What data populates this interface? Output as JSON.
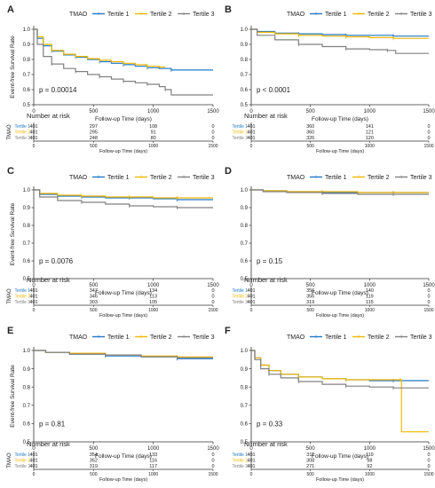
{
  "legend": {
    "title": "TMAO",
    "entries": [
      "Tertile 1",
      "Tertile 2",
      "Tertile 3"
    ]
  },
  "colors": {
    "t1": "#1f78c8",
    "t2": "#f2b705",
    "t3": "#808080"
  },
  "risk_rows": [
    "Tertile 1",
    "Tertile 2",
    "Tertile 3"
  ],
  "chart_data": [
    {
      "panel": "A",
      "type": "line",
      "ylabel": "Event-free Survival Rate",
      "xlabel": "Follow-up Time (days)",
      "xlim": [
        0,
        1500
      ],
      "ylim": [
        0.5,
        1.0
      ],
      "yticks": [
        "0.5",
        "0.6",
        "0.7",
        "0.8",
        "0.9",
        "1.0"
      ],
      "xticks": [
        "0",
        "500",
        "1000",
        "1500"
      ],
      "pvalue": "p = 0.00014",
      "risk_title": "Number at risk",
      "risk_axis_label": "TMAO",
      "risk_table": [
        [
          "401",
          "297",
          "108",
          "0"
        ],
        [
          "401",
          "295",
          "91",
          "0"
        ],
        [
          "401",
          "248",
          "80",
          "0"
        ]
      ],
      "series": [
        {
          "x": [
            0,
            30,
            80,
            150,
            250,
            350,
            450,
            550,
            650,
            750,
            850,
            950,
            1050,
            1150,
            1500
          ],
          "y": [
            1.0,
            0.94,
            0.89,
            0.855,
            0.83,
            0.815,
            0.8,
            0.785,
            0.775,
            0.765,
            0.755,
            0.745,
            0.74,
            0.73,
            0.73
          ]
        },
        {
          "x": [
            0,
            30,
            80,
            150,
            250,
            350,
            450,
            550,
            650,
            750,
            850,
            950,
            1050,
            1100
          ],
          "y": [
            1.0,
            0.95,
            0.9,
            0.86,
            0.835,
            0.82,
            0.805,
            0.795,
            0.785,
            0.775,
            0.765,
            0.755,
            0.75,
            0.75
          ]
        },
        {
          "x": [
            0,
            30,
            80,
            150,
            250,
            350,
            450,
            550,
            650,
            750,
            850,
            950,
            1050,
            1100,
            1150,
            1500
          ],
          "y": [
            1.0,
            0.9,
            0.82,
            0.77,
            0.74,
            0.72,
            0.7,
            0.685,
            0.67,
            0.655,
            0.645,
            0.635,
            0.62,
            0.6,
            0.565,
            0.565
          ]
        }
      ]
    },
    {
      "panel": "B",
      "type": "line",
      "ylabel": "",
      "xlabel": "Follow-up Time (days)",
      "xlim": [
        0,
        1500
      ],
      "ylim": [
        0.5,
        1.0
      ],
      "yticks": [
        "0.5",
        "0.6",
        "0.7",
        "0.8",
        "0.9",
        "1.0"
      ],
      "xticks": [
        "0",
        "500",
        "1000",
        "1500"
      ],
      "pvalue": "p < 0.0001",
      "risk_title": "Number at risk",
      "risk_axis_label": "",
      "risk_table": [
        [
          "401",
          "360",
          "141",
          "0"
        ],
        [
          "401",
          "360",
          "121",
          "0"
        ],
        [
          "401",
          "326",
          "120",
          "0"
        ]
      ],
      "series": [
        {
          "x": [
            0,
            50,
            200,
            400,
            600,
            800,
            1000,
            1200,
            1500
          ],
          "y": [
            1.0,
            0.985,
            0.975,
            0.97,
            0.965,
            0.96,
            0.96,
            0.955,
            0.955
          ]
        },
        {
          "x": [
            0,
            50,
            200,
            400,
            600,
            800,
            1000,
            1200,
            1500
          ],
          "y": [
            1.0,
            0.98,
            0.97,
            0.96,
            0.955,
            0.95,
            0.945,
            0.94,
            0.94
          ]
        },
        {
          "x": [
            0,
            50,
            200,
            400,
            600,
            800,
            1000,
            1150,
            1220,
            1500
          ],
          "y": [
            1.0,
            0.96,
            0.93,
            0.9,
            0.885,
            0.87,
            0.865,
            0.86,
            0.84,
            0.84
          ]
        }
      ]
    },
    {
      "panel": "C",
      "type": "line",
      "ylabel": "Event-free Survival Rate",
      "xlabel": "Follow-up Time (days)",
      "xlim": [
        0,
        1500
      ],
      "ylim": [
        0.5,
        1.0
      ],
      "yticks": [
        "0.5",
        "0.6",
        "0.7",
        "0.8",
        "0.9",
        "1.0"
      ],
      "xticks": [
        "0",
        "500",
        "1000",
        "1500"
      ],
      "pvalue": "p = 0.0076",
      "risk_title": "Number at risk",
      "risk_axis_label": "TMAO",
      "risk_table": [
        [
          "401",
          "347",
          "134",
          "0"
        ],
        [
          "401",
          "346",
          "113",
          "0"
        ],
        [
          "401",
          "303",
          "105",
          "0"
        ]
      ],
      "series": [
        {
          "x": [
            0,
            50,
            200,
            400,
            600,
            800,
            1000,
            1200,
            1500
          ],
          "y": [
            1.0,
            0.975,
            0.965,
            0.96,
            0.955,
            0.955,
            0.95,
            0.945,
            0.945
          ]
        },
        {
          "x": [
            0,
            50,
            200,
            400,
            600,
            800,
            1000,
            1200,
            1500
          ],
          "y": [
            1.0,
            0.98,
            0.97,
            0.965,
            0.96,
            0.96,
            0.955,
            0.955,
            0.955
          ]
        },
        {
          "x": [
            0,
            50,
            200,
            400,
            600,
            800,
            1000,
            1200,
            1500
          ],
          "y": [
            1.0,
            0.96,
            0.94,
            0.93,
            0.92,
            0.91,
            0.905,
            0.9,
            0.9
          ]
        }
      ]
    },
    {
      "panel": "D",
      "type": "line",
      "ylabel": "",
      "xlabel": "Follow-up Time (days)",
      "xlim": [
        0,
        1500
      ],
      "ylim": [
        0.5,
        1.0
      ],
      "yticks": [
        "0.5",
        "0.6",
        "0.7",
        "0.8",
        "0.9",
        "1.0"
      ],
      "xticks": [
        "0",
        "500",
        "1000",
        "1500"
      ],
      "pvalue": "p = 0.15",
      "risk_title": "Number at risk",
      "risk_axis_label": "",
      "risk_table": [
        [
          "401",
          "356",
          "140",
          "0"
        ],
        [
          "401",
          "356",
          "119",
          "0"
        ],
        [
          "401",
          "319",
          "115",
          "0"
        ]
      ],
      "series": [
        {
          "x": [
            0,
            100,
            300,
            600,
            900,
            1200,
            1500
          ],
          "y": [
            1.0,
            0.995,
            0.99,
            0.985,
            0.985,
            0.985,
            0.985
          ]
        },
        {
          "x": [
            0,
            100,
            300,
            600,
            900,
            1200,
            1500
          ],
          "y": [
            1.0,
            0.995,
            0.99,
            0.99,
            0.985,
            0.985,
            0.985
          ]
        },
        {
          "x": [
            0,
            100,
            300,
            600,
            900,
            1200,
            1500
          ],
          "y": [
            1.0,
            0.99,
            0.985,
            0.98,
            0.975,
            0.975,
            0.975
          ]
        }
      ]
    },
    {
      "panel": "E",
      "type": "line",
      "ylabel": "Event-free Survival Rate",
      "xlabel": "Follow-up Time (days)",
      "xlim": [
        0,
        1500
      ],
      "ylim": [
        0.5,
        1.0
      ],
      "yticks": [
        "0.5",
        "0.6",
        "0.7",
        "0.8",
        "0.9",
        "1.0"
      ],
      "xticks": [
        "0",
        "500",
        "1000",
        "1500"
      ],
      "pvalue": "p = 0.81",
      "risk_title": "Number at risk",
      "risk_axis_label": "TMAO",
      "risk_table": [
        [
          "401",
          "354",
          "133",
          "0"
        ],
        [
          "401",
          "352",
          "116",
          "0"
        ],
        [
          "401",
          "319",
          "117",
          "0"
        ]
      ],
      "series": [
        {
          "x": [
            0,
            100,
            300,
            600,
            900,
            1200,
            1500
          ],
          "y": [
            1.0,
            0.99,
            0.98,
            0.97,
            0.965,
            0.955,
            0.955
          ]
        },
        {
          "x": [
            0,
            100,
            300,
            600,
            900,
            1200,
            1500
          ],
          "y": [
            1.0,
            0.99,
            0.985,
            0.975,
            0.97,
            0.965,
            0.965
          ]
        },
        {
          "x": [
            0,
            100,
            300,
            600,
            900,
            1200,
            1500
          ],
          "y": [
            1.0,
            0.99,
            0.98,
            0.975,
            0.965,
            0.96,
            0.96
          ]
        }
      ]
    },
    {
      "panel": "F",
      "type": "line",
      "ylabel": "",
      "xlabel": "Follow-up Time (days)",
      "xlim": [
        0,
        1500
      ],
      "ylim": [
        0.5,
        1.0
      ],
      "yticks": [
        "0.5",
        "0.6",
        "0.7",
        "0.8",
        "0.9",
        "1.0"
      ],
      "xticks": [
        "0",
        "500",
        "1000",
        "1500"
      ],
      "pvalue": "p = 0.33",
      "risk_title": "Number at risk",
      "risk_axis_label": "",
      "risk_table": [
        [
          "401",
          "311",
          "119",
          "0"
        ],
        [
          "401",
          "308",
          "98",
          "0"
        ],
        [
          "401",
          "271",
          "92",
          "0"
        ]
      ],
      "series": [
        {
          "x": [
            0,
            30,
            80,
            150,
            250,
            400,
            600,
            800,
            1000,
            1200,
            1500
          ],
          "y": [
            1.0,
            0.96,
            0.92,
            0.89,
            0.87,
            0.855,
            0.845,
            0.84,
            0.835,
            0.835,
            0.835
          ]
        },
        {
          "x": [
            0,
            30,
            80,
            150,
            250,
            400,
            600,
            800,
            1000,
            1260,
            1270,
            1500
          ],
          "y": [
            1.0,
            0.96,
            0.92,
            0.89,
            0.87,
            0.855,
            0.845,
            0.84,
            0.84,
            0.84,
            0.555,
            0.555
          ]
        },
        {
          "x": [
            0,
            30,
            80,
            150,
            250,
            400,
            600,
            800,
            1000,
            1200,
            1500
          ],
          "y": [
            1.0,
            0.95,
            0.9,
            0.87,
            0.85,
            0.83,
            0.815,
            0.805,
            0.8,
            0.795,
            0.795
          ]
        }
      ]
    }
  ]
}
